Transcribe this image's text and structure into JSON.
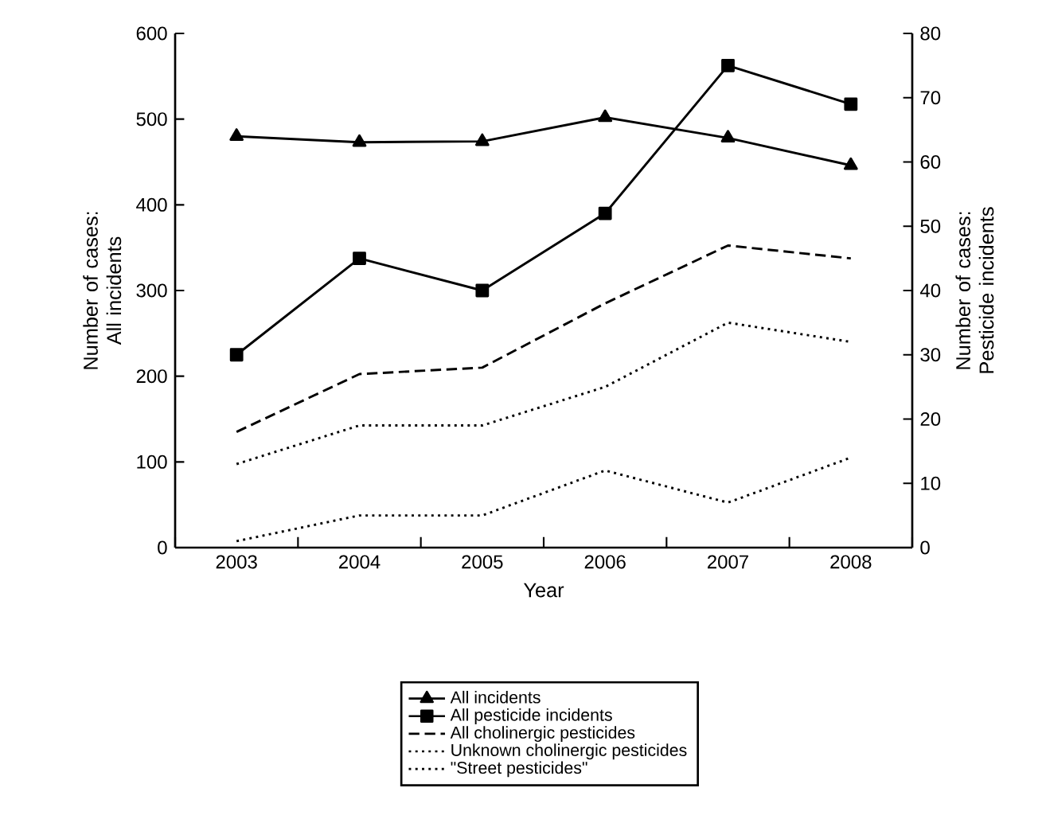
{
  "chart_data": {
    "type": "line",
    "xlabel": "Year",
    "ylabel": "Number of cases: All incidents",
    "y2label": "Number of cases: Pesticide incidents",
    "categories": [
      "2003",
      "2004",
      "2005",
      "2006",
      "2007",
      "2008"
    ],
    "series": [
      {
        "name": "All incidents",
        "color": "#000000",
        "marker": "triangle",
        "line_style": "solid",
        "values": [
          480,
          473,
          474,
          502,
          478,
          446
        ]
      },
      {
        "name": "All pesticide incidents",
        "color": "#000000",
        "marker": "square",
        "line_style": "solid",
        "axis": "y2",
        "values": [
          30,
          45,
          40,
          52,
          75,
          69
        ]
      },
      {
        "name": "All cholinergic pesticides",
        "color": "#000000",
        "marker": "none",
        "line_style": "dashed",
        "axis": "y2",
        "values": [
          18,
          27,
          28,
          38,
          47,
          45
        ]
      },
      {
        "name": "Unknown cholinergic pesticides",
        "color": "#000000",
        "marker": "none",
        "line_style": "dotted",
        "axis": "y2",
        "values": [
          13,
          19,
          19,
          25,
          35,
          32
        ]
      },
      {
        "name": "\"Street pesticides\"",
        "color": "#000000",
        "marker": "none",
        "line_style": "dotted",
        "axis": "y2",
        "values": [
          1,
          5,
          5,
          12,
          7,
          14
        ]
      }
    ],
    "ylim": [
      0,
      600
    ],
    "yticks": [
      0,
      100,
      200,
      300,
      400,
      500,
      600
    ],
    "y2lim": [
      0,
      80
    ],
    "y2ticks": [
      0,
      10,
      20,
      30,
      40,
      50,
      60,
      70,
      80
    ],
    "grid": false,
    "legend": "bottom"
  }
}
